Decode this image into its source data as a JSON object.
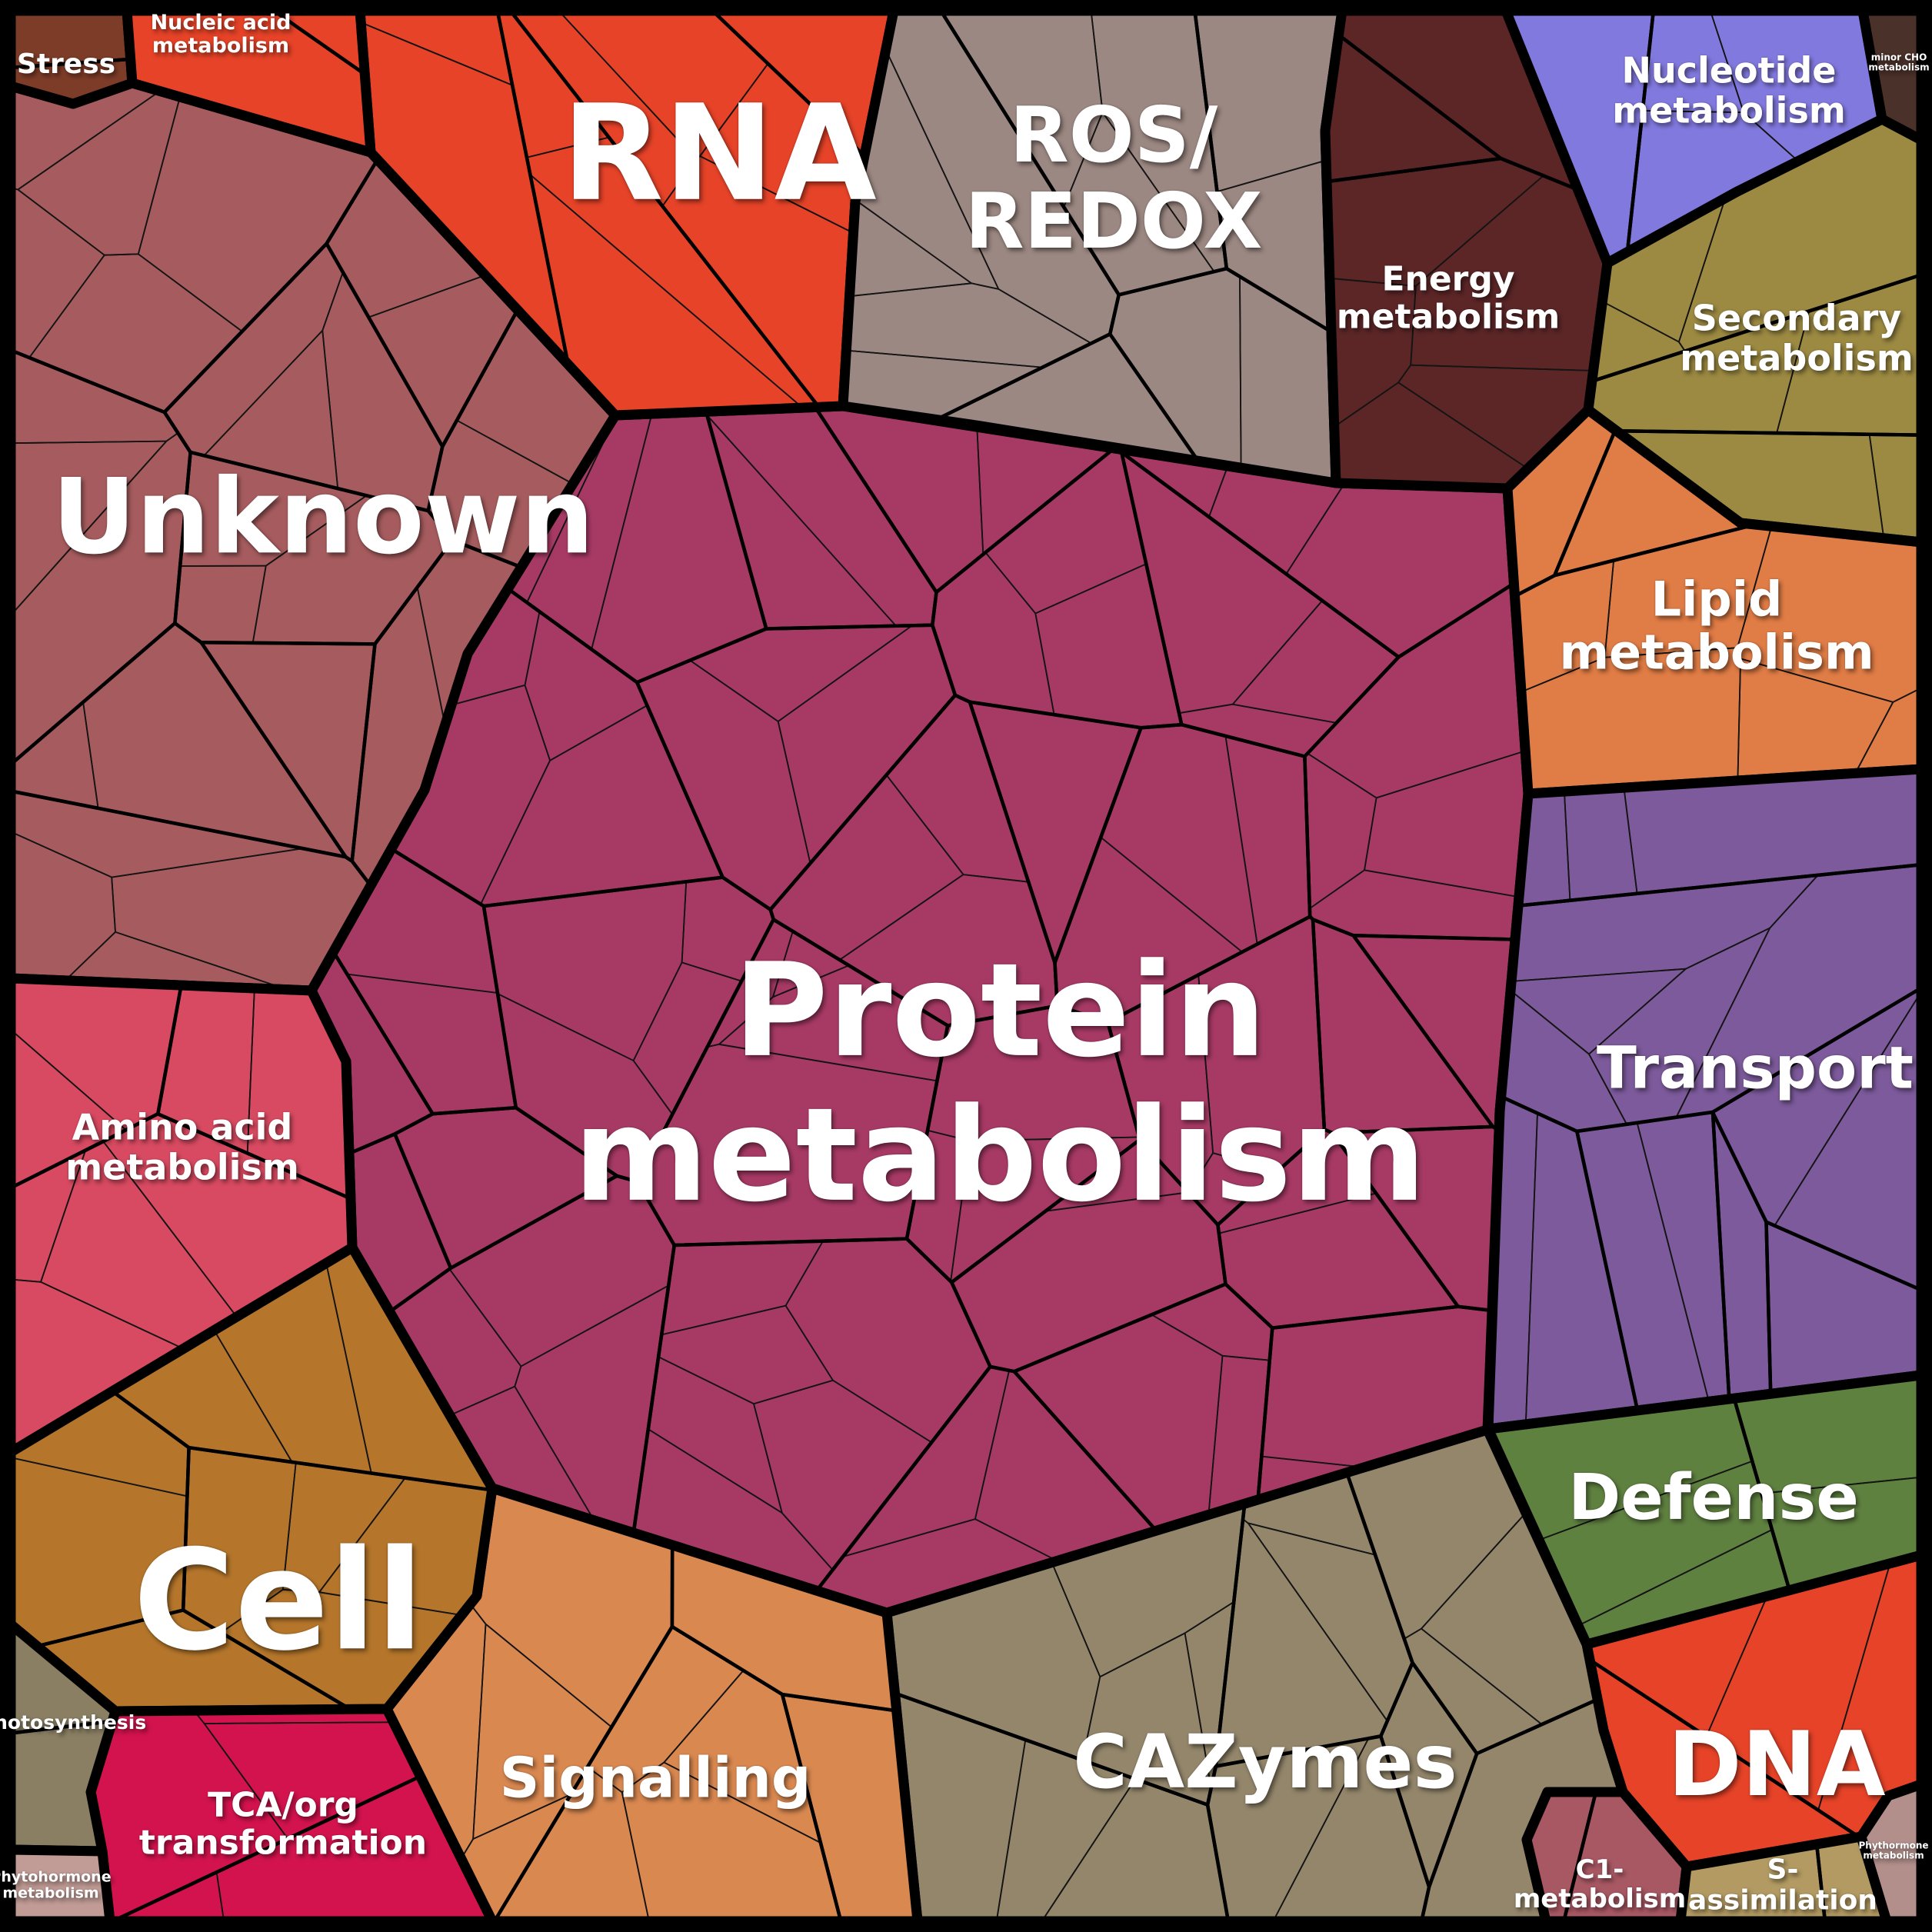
{
  "chart_data": {
    "type": "voronoi-treemap",
    "title": "",
    "legend_position": "none",
    "background_color": "#000000",
    "border_color": "#000000",
    "label_color": "#ffffff",
    "regions": [
      {
        "id": "protein",
        "label": "Protein\nmetabolism",
        "color": "#a73a65",
        "approx_area_pct": 26.0
      },
      {
        "id": "unknown",
        "label": "Unknown",
        "color": "#a65c5e",
        "approx_area_pct": 13.0
      },
      {
        "id": "rna",
        "label": "RNA",
        "color": "#e64328",
        "approx_area_pct": 5.5
      },
      {
        "id": "ros",
        "label": "ROS/\nREDOX",
        "color": "#9c8882",
        "approx_area_pct": 4.6
      },
      {
        "id": "energy",
        "label": "Energy\nmetabolism",
        "color": "#5c2627",
        "approx_area_pct": 2.9
      },
      {
        "id": "nucleotide",
        "label": "Nucleotide\nmetabolism",
        "color": "#8279df",
        "approx_area_pct": 2.3
      },
      {
        "id": "minor_cho",
        "label": "minor CHO\nmetabolism",
        "color": "#4a312a",
        "approx_area_pct": 0.35
      },
      {
        "id": "secondary",
        "label": "Secondary\nmetabolism",
        "color": "#9c8a42",
        "approx_area_pct": 3.1
      },
      {
        "id": "lipid",
        "label": "Lipid\nmetabolism",
        "color": "#e07c45",
        "approx_area_pct": 3.5
      },
      {
        "id": "transport",
        "label": "Transport",
        "color": "#7c5a9b",
        "approx_area_pct": 5.9
      },
      {
        "id": "defense",
        "label": "Defense",
        "color": "#5f8140",
        "approx_area_pct": 2.9
      },
      {
        "id": "dna",
        "label": "DNA",
        "color": "#e64328",
        "approx_area_pct": 2.5
      },
      {
        "id": "cazymes",
        "label": "CAZymes",
        "color": "#93866b",
        "approx_area_pct": 7.4
      },
      {
        "id": "c1",
        "label": "C1-\nmetabolism",
        "color": "#a85863",
        "approx_area_pct": 0.55
      },
      {
        "id": "s_assimilation",
        "label": "S-\nassimilation",
        "color": "#b29a62",
        "approx_area_pct": 0.55
      },
      {
        "id": "phythormone_br",
        "label": "Phythormone\nmetabolism",
        "color": "#b28f8b",
        "approx_area_pct": 0.3
      },
      {
        "id": "signalling",
        "label": "Signalling",
        "color": "#d98850",
        "approx_area_pct": 4.5
      },
      {
        "id": "cell",
        "label": "Cell",
        "color": "#b5762b",
        "approx_area_pct": 5.6
      },
      {
        "id": "tca",
        "label": "TCA/org\ntransformation",
        "color": "#d3134e",
        "approx_area_pct": 2.2
      },
      {
        "id": "photosynthesis",
        "label": "Photosynthesis",
        "color": "#8a7f63",
        "approx_area_pct": 0.6
      },
      {
        "id": "phytohormone_bl",
        "label": "Phytohormone\nmetabolism",
        "color": "#c19b95",
        "approx_area_pct": 0.25
      },
      {
        "id": "amino",
        "label": "Amino acid\nmetabolism",
        "color": "#d84a61",
        "approx_area_pct": 2.8
      },
      {
        "id": "stress",
        "label": "Stress",
        "color": "#7d3c28",
        "approx_area_pct": 0.35
      },
      {
        "id": "nucleic_acid",
        "label": "Nucleic acid\nmetabolism",
        "color": "#e64328",
        "approx_area_pct": 0.9
      }
    ]
  }
}
